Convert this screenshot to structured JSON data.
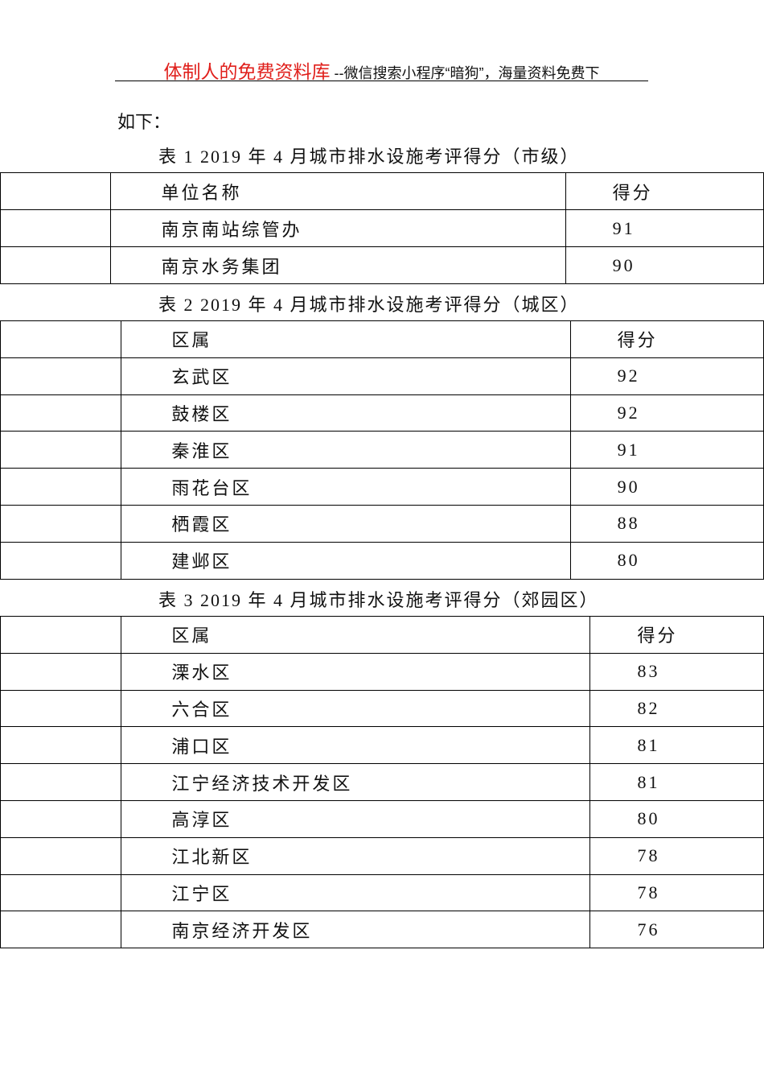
{
  "header": {
    "brand": "体制人的免费资料库",
    "tagline": " --微信搜索小程序“暗狗”，海量资料免费下"
  },
  "intro": "如下：",
  "tables": [
    {
      "caption": "表 1  2019 年 4 月城市排水设施考评得分（市级）",
      "headers": [
        "单位名称",
        "得分"
      ],
      "rows": [
        [
          "南京南站综管办",
          "91"
        ],
        [
          "南京水务集团",
          "90"
        ]
      ]
    },
    {
      "caption": "表 2  2019 年 4 月城市排水设施考评得分（城区）",
      "headers": [
        "区属",
        "得分"
      ],
      "rows": [
        [
          "玄武区",
          "92"
        ],
        [
          "鼓楼区",
          "92"
        ],
        [
          "秦淮区",
          "91"
        ],
        [
          "雨花台区",
          "90"
        ],
        [
          "栖霞区",
          "88"
        ],
        [
          "建邺区",
          "80"
        ]
      ]
    },
    {
      "caption": "表 3  2019 年 4 月城市排水设施考评得分（郊园区）",
      "headers": [
        "区属",
        "得分"
      ],
      "rows": [
        [
          "溧水区",
          "83"
        ],
        [
          "六合区",
          "82"
        ],
        [
          "浦口区",
          "81"
        ],
        [
          "江宁经济技术开发区",
          "81"
        ],
        [
          "高淳区",
          "80"
        ],
        [
          "江北新区",
          "78"
        ],
        [
          "江宁区",
          "78"
        ],
        [
          "南京经济开发区",
          "76"
        ]
      ]
    }
  ]
}
